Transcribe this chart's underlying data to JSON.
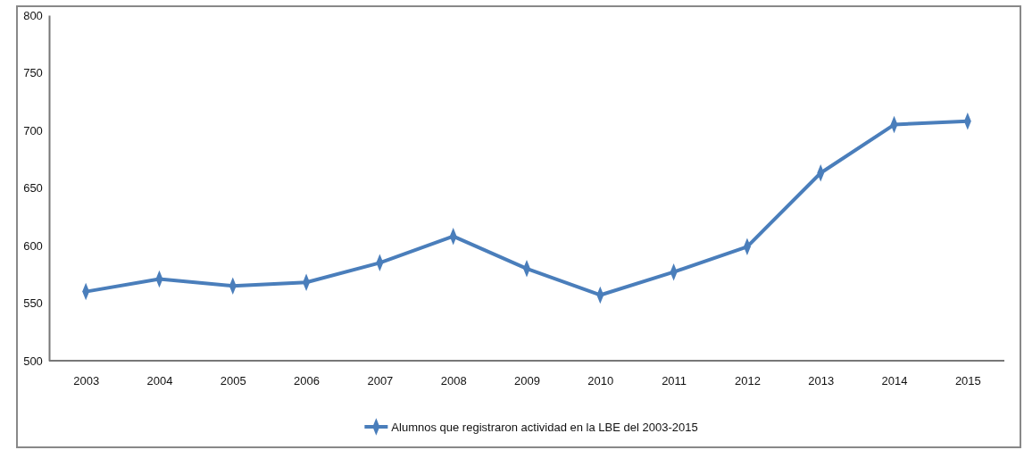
{
  "chart_data": {
    "type": "line",
    "categories": [
      "2003",
      "2004",
      "2005",
      "2006",
      "2007",
      "2008",
      "2009",
      "2010",
      "2011",
      "2012",
      "2013",
      "2014",
      "2015"
    ],
    "series": [
      {
        "name": "Alumnos que registraron actividad  en la LBE del 2003-2015",
        "color": "#4a7ebb",
        "values": [
          560,
          571,
          565,
          568,
          585,
          608,
          580,
          557,
          577,
          599,
          663,
          705,
          708
        ]
      }
    ],
    "ylim": [
      500,
      800
    ],
    "yticks": [
      500,
      550,
      600,
      650,
      700,
      750,
      800
    ],
    "grid": false,
    "legend": "bottom",
    "marker": "diamond",
    "line_style": "solid"
  }
}
